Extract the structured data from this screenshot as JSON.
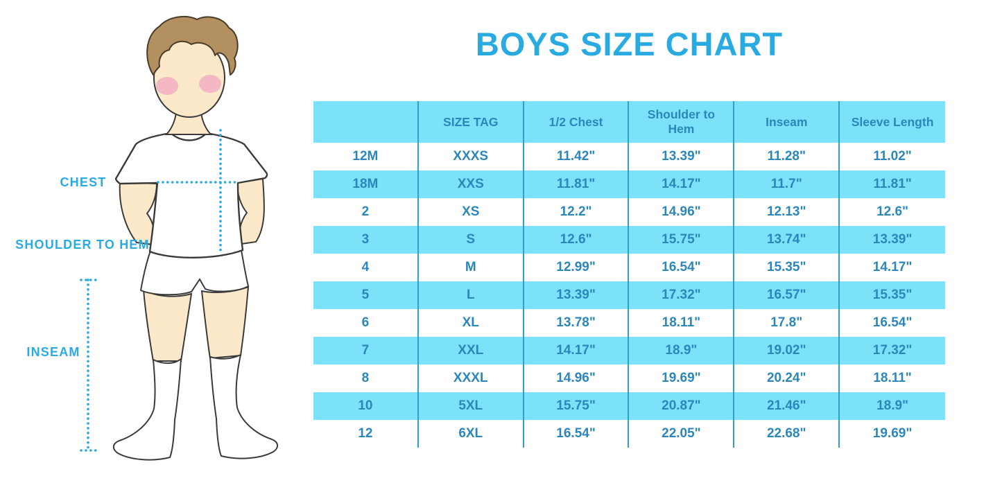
{
  "title": "BOYS SIZE CHART",
  "figure": {
    "description": "outline illustration of a boy in white t-shirt, shorts and knee socks with measurement guides",
    "labels": {
      "chest": "CHEST",
      "shoulder_to_hem": "SHOULDER TO HEM",
      "inseam": "INSEAM"
    }
  },
  "chart_data": {
    "type": "table",
    "title": "BOYS SIZE CHART",
    "columns": [
      "",
      "SIZE TAG",
      "1/2 Chest",
      "Shoulder to Hem",
      "Inseam",
      "Sleeve Length"
    ],
    "rows": [
      [
        "12M",
        "XXXS",
        "11.42\"",
        "13.39\"",
        "11.28\"",
        "11.02\""
      ],
      [
        "18M",
        "XXS",
        "11.81\"",
        "14.17\"",
        "11.7\"",
        "11.81\""
      ],
      [
        "2",
        "XS",
        "12.2\"",
        "14.96\"",
        "12.13\"",
        "12.6\""
      ],
      [
        "3",
        "S",
        "12.6\"",
        "15.75\"",
        "13.74\"",
        "13.39\""
      ],
      [
        "4",
        "M",
        "12.99\"",
        "16.54\"",
        "15.35\"",
        "14.17\""
      ],
      [
        "5",
        "L",
        "13.39\"",
        "17.32\"",
        "16.57\"",
        "15.35\""
      ],
      [
        "6",
        "XL",
        "13.78\"",
        "18.11\"",
        "17.8\"",
        "16.54\""
      ],
      [
        "7",
        "XXL",
        "14.17\"",
        "18.9\"",
        "19.02\"",
        "17.32\""
      ],
      [
        "8",
        "XXXL",
        "14.96\"",
        "19.69\"",
        "20.24\"",
        "18.11\""
      ],
      [
        "10",
        "5XL",
        "15.75\"",
        "20.87\"",
        "21.46\"",
        "18.9\""
      ],
      [
        "12",
        "6XL",
        "16.54\"",
        "22.05\"",
        "22.68\"",
        "19.69\""
      ]
    ],
    "layout_hints": {
      "striped_rows": "odd data rows highlighted cyan",
      "grid": "vertical column separators only"
    }
  },
  "colors": {
    "accent_blue": "#29ABE2",
    "table_text": "#2B87BB",
    "row_highlight": "#7BE2FA",
    "grid_line": "#2A9FD0",
    "skin": "#FBE9C9",
    "hair": "#B3905F",
    "blush": "#F2A6C2",
    "outline": "#3A3A3A"
  }
}
